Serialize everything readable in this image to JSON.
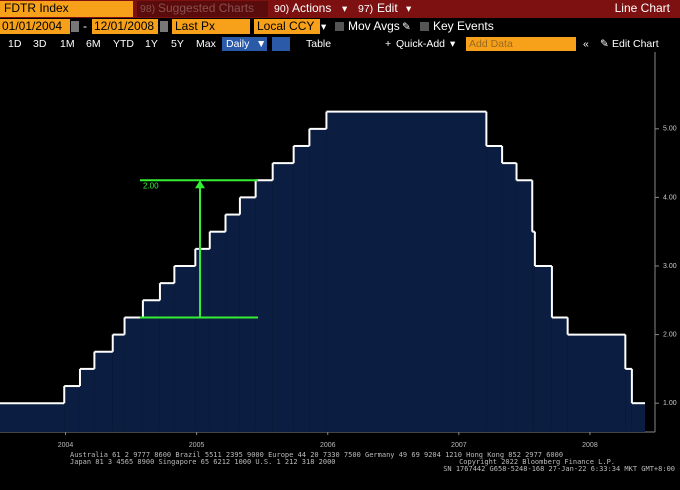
{
  "toolbar": {
    "ticker": "FDTR Index",
    "suggested_num": "98)",
    "suggested": "Suggested Charts",
    "actions_num": "90)",
    "actions": "Actions",
    "edit_num": "97)",
    "edit": "Edit",
    "chart_type": "Line Chart"
  },
  "controls": {
    "start": "01/01/2004",
    "dash": "-",
    "end": "12/01/2008",
    "field": "Last Px",
    "currency": "Local CCY",
    "mov_avgs": "Mov Avgs",
    "key_events": "Key Events"
  },
  "periods": [
    "1D",
    "3D",
    "1M",
    "6M",
    "YTD",
    "1Y",
    "5Y",
    "Max"
  ],
  "frequency": "Daily",
  "table": "Table",
  "quick_add": "Quick-Add",
  "add_data": "Add Data",
  "edit_chart": "Edit Chart",
  "chart_data": {
    "type": "step",
    "color": "#ffffff",
    "fill": "#0b1d40",
    "x": [
      2004.0,
      2004.49,
      2004.61,
      2004.72,
      2004.86,
      2004.95,
      2005.09,
      2005.22,
      2005.33,
      2005.49,
      2005.6,
      2005.72,
      2005.83,
      2005.95,
      2006.08,
      2006.24,
      2006.36,
      2006.49,
      2007.71,
      2007.83,
      2007.94,
      2008.06,
      2008.08,
      2008.21,
      2008.33,
      2008.77,
      2008.82,
      2008.92
    ],
    "values": [
      1.0,
      1.25,
      1.5,
      1.75,
      2.0,
      2.25,
      2.5,
      2.75,
      3.0,
      3.25,
      3.5,
      3.75,
      4.0,
      4.25,
      4.5,
      4.75,
      5.0,
      5.25,
      4.75,
      4.5,
      4.25,
      3.5,
      3.0,
      2.25,
      2.0,
      1.5,
      1.0,
      1.0
    ],
    "xlim": [
      2004.0,
      2008.92
    ],
    "ylim": [
      0.58,
      6.12
    ],
    "xticks": [
      {
        "value": 2004.5,
        "label": "2004"
      },
      {
        "value": 2005.5,
        "label": "2005"
      },
      {
        "value": 2006.5,
        "label": "2006"
      },
      {
        "value": 2007.5,
        "label": "2007"
      },
      {
        "value": 2008.5,
        "label": "2008"
      }
    ],
    "yticks": [
      {
        "value": 1,
        "label": "1.00"
      },
      {
        "value": 2,
        "label": "2.00"
      },
      {
        "value": 3,
        "label": "3.00"
      },
      {
        "value": 4,
        "label": "4.00"
      },
      {
        "value": 5,
        "label": "5.00"
      }
    ],
    "annotation": {
      "label": "2.00",
      "from": 2.25,
      "to": 4.25,
      "color": "#33ee33"
    }
  },
  "footer": {
    "line1": "Australia 61 2 9777 8600 Brazil 5511 2395 9000 Europe 44 20 7330 7500 Germany 49 69 9204 1210 Hong Kong 852 2977 6000",
    "line2": "Japan 81 3 4565 8900       Singapore 65 6212 1000       U.S. 1 212 318 2000",
    "line2_right": "Copyright 2022 Bloomberg Finance L.P.",
    "line3": "SN 1767442 G658-5248-168 27-Jan-22  6:33:34 MKT  GMT+8:00"
  }
}
